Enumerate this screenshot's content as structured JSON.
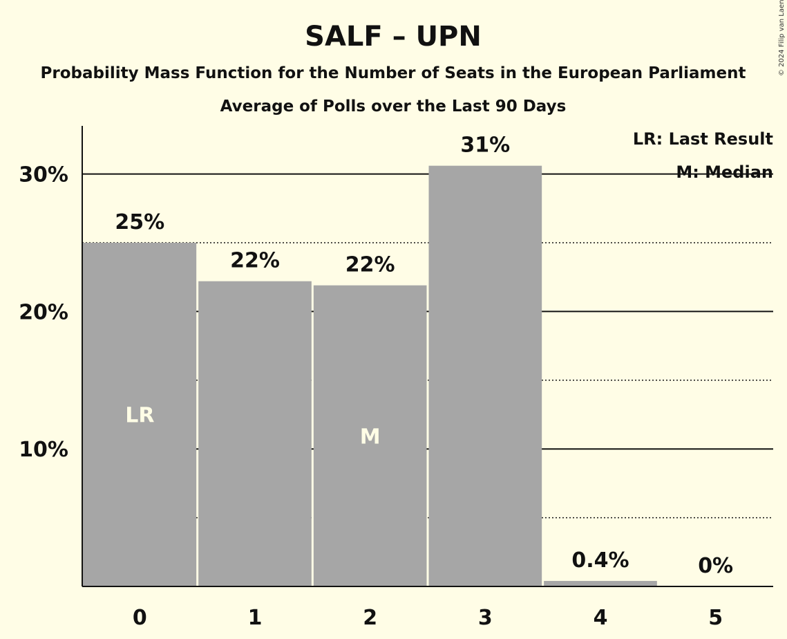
{
  "chart_data": {
    "type": "bar",
    "title": "SALF – UPN",
    "subtitle": "Probability Mass Function for the Number of Seats in the European Parliament",
    "subtitle2": "Average of Polls over the Last 90 Days",
    "categories": [
      "0",
      "1",
      "2",
      "3",
      "4",
      "5"
    ],
    "values": [
      25.0,
      22.2,
      21.9,
      30.6,
      0.4,
      0.0
    ],
    "value_labels": [
      "25%",
      "22%",
      "22%",
      "31%",
      "0.4%",
      "0%"
    ],
    "bar_markers": [
      "LR",
      "",
      "M",
      "",
      "",
      ""
    ],
    "ylim": [
      0,
      33.5
    ],
    "y_ticks": [
      10,
      20,
      30
    ],
    "y_tick_labels": [
      "10%",
      "20%",
      "30%"
    ],
    "minor_gridlines": [
      5,
      15,
      25
    ],
    "grid": true,
    "legend": {
      "placement": "top-right",
      "entries": [
        "LR: Last Result",
        "M: Median"
      ]
    },
    "bar_color": "#a6a6a6",
    "background_color": "#fffde6"
  },
  "copyright": "© 2024 Filip van Laenen"
}
